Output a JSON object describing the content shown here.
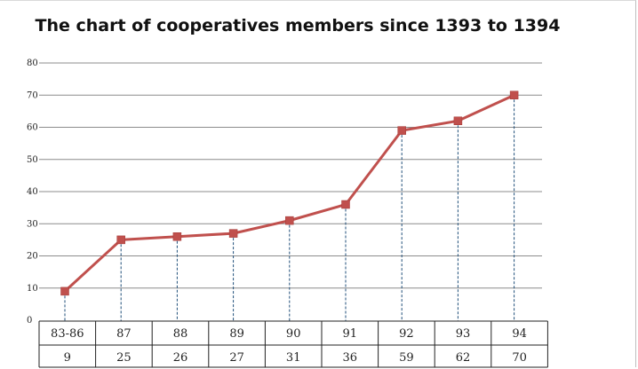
{
  "chart_data": {
    "type": "line",
    "title": "The chart of cooperatives members since 1393 to 1394",
    "categories": [
      "83-86",
      "87",
      "88",
      "89",
      "90",
      "91",
      "92",
      "93",
      "94"
    ],
    "series": [
      {
        "values": [
          9,
          25,
          26,
          27,
          31,
          36,
          59,
          62,
          70
        ],
        "color": "#c0504d"
      }
    ],
    "ylim": [
      0,
      80
    ],
    "yticks": [
      "0",
      "10",
      "20",
      "30",
      "40",
      "50",
      "60",
      "70",
      "80"
    ],
    "grid": true,
    "data_table": true
  }
}
